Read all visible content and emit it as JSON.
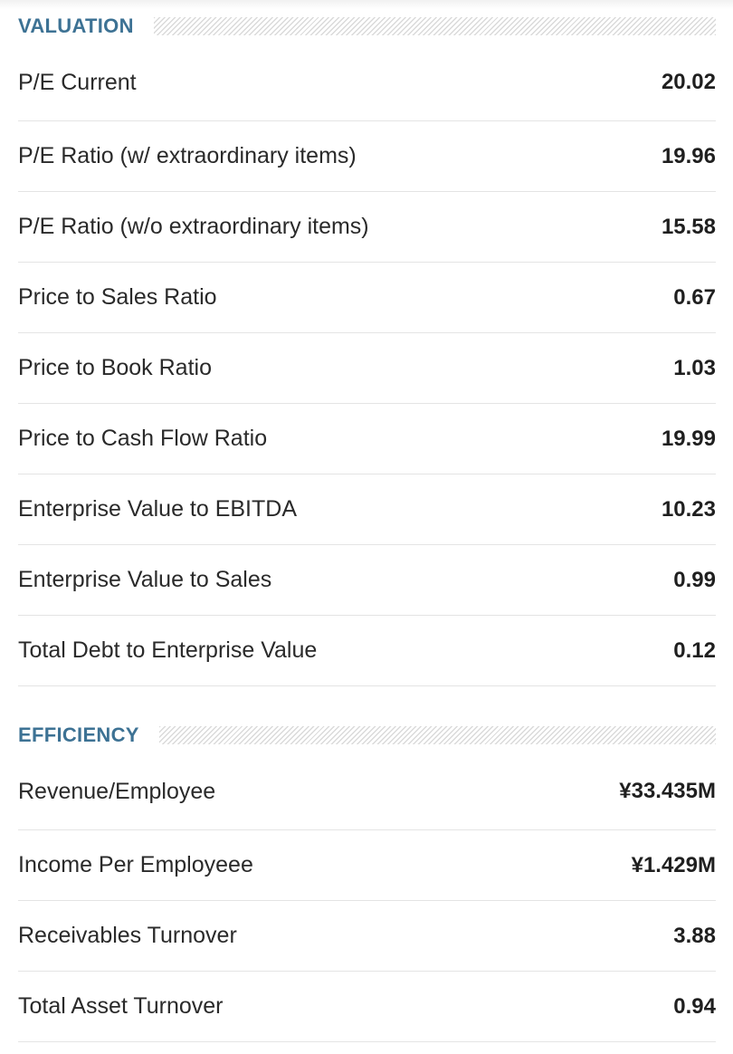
{
  "valuation": {
    "title": "VALUATION",
    "rows": [
      {
        "label": "P/E Current",
        "value": "20.02"
      },
      {
        "label": "P/E Ratio (w/ extraordinary items)",
        "value": "19.96"
      },
      {
        "label": "P/E Ratio (w/o extraordinary items)",
        "value": "15.58"
      },
      {
        "label": "Price to Sales Ratio",
        "value": "0.67"
      },
      {
        "label": "Price to Book Ratio",
        "value": "1.03"
      },
      {
        "label": "Price to Cash Flow Ratio",
        "value": "19.99"
      },
      {
        "label": "Enterprise Value to EBITDA",
        "value": "10.23"
      },
      {
        "label": "Enterprise Value to Sales",
        "value": "0.99"
      },
      {
        "label": "Total Debt to Enterprise Value",
        "value": "0.12"
      }
    ]
  },
  "efficiency": {
    "title": "EFFICIENCY",
    "rows": [
      {
        "label": "Revenue/Employee",
        "value": "¥33.435M"
      },
      {
        "label": "Income Per Employeee",
        "value": "¥1.429M"
      },
      {
        "label": "Receivables Turnover",
        "value": "3.88"
      },
      {
        "label": "Total Asset Turnover",
        "value": "0.94"
      }
    ]
  },
  "colors": {
    "section_title": "#3d7294",
    "divider": "#e4e4e4",
    "text": "#2a2a2a"
  }
}
